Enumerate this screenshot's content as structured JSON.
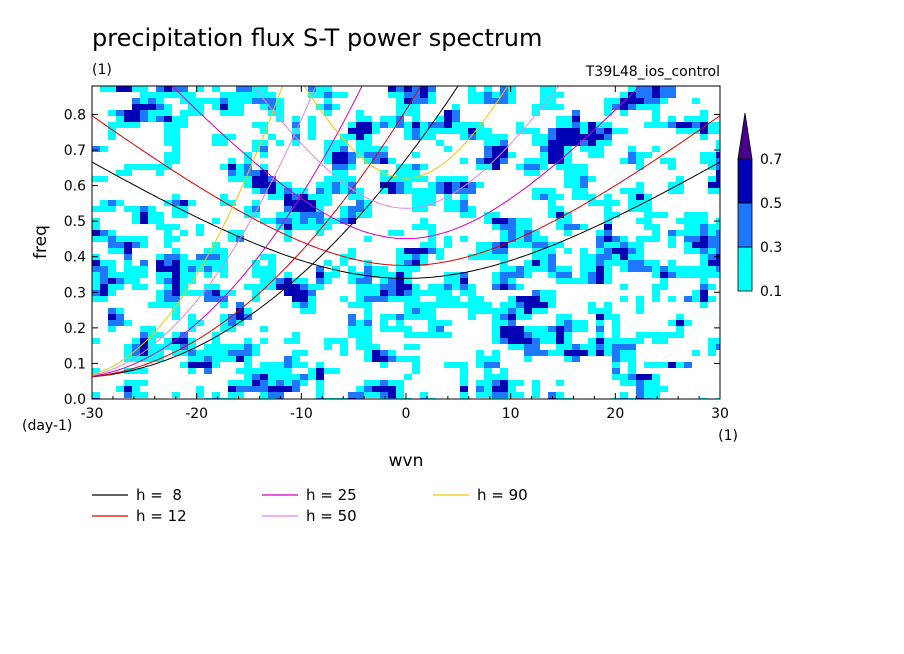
{
  "chart_data": {
    "type": "heatmap",
    "title": "precipitation flux S-T power spectrum",
    "subtitle_left": "(1)",
    "subtitle_right": "T39L48_ios_control",
    "xlabel": "wvn",
    "ylabel": "freq",
    "x_unit": "(1)",
    "y_unit": "(day-1)",
    "xlim": [
      -30,
      30
    ],
    "ylim": [
      0,
      0.88
    ],
    "xticks": [
      -30,
      -20,
      -10,
      0,
      10,
      20,
      30
    ],
    "xtick_labels": [
      "-30",
      "-20",
      "-10",
      "0",
      "10",
      "20",
      "30"
    ],
    "yticks": [
      0,
      0.1,
      0.2,
      0.3,
      0.4,
      0.5,
      0.6,
      0.7,
      0.8
    ],
    "ytick_labels": [
      "0.0",
      "0.1",
      "0.2",
      "0.3",
      "0.4",
      "0.5",
      "0.6",
      "0.7",
      "0.8"
    ],
    "colorbar": {
      "levels": [
        0.1,
        0.3,
        0.5,
        0.7
      ],
      "labels": [
        "0.1",
        "0.3",
        "0.5",
        "0.7"
      ],
      "colors": [
        "#00ffff",
        "#1e78ff",
        "#0000b4",
        "#46008c"
      ]
    },
    "series": [
      {
        "name": "h =  8",
        "h": 8,
        "color": "#000000"
      },
      {
        "name": "h = 12",
        "h": 12,
        "color": "#e00000"
      },
      {
        "name": "h = 25",
        "h": 25,
        "color": "#d000c0"
      },
      {
        "name": "h = 50",
        "h": 50,
        "color": "#e088e0"
      },
      {
        "name": "h = 90",
        "h": 90,
        "color": "#f0c800"
      }
    ],
    "grid": false,
    "legend_position": "bottom-left"
  }
}
